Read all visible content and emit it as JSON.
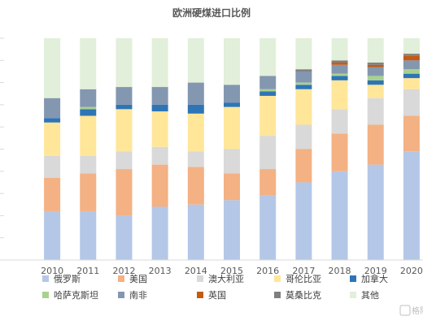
{
  "chart_data": {
    "type": "bar",
    "stacked": true,
    "normalized": true,
    "title": "欧洲硬煤进口比例",
    "xlabel": "",
    "ylabel": "",
    "ylim": [
      0,
      100
    ],
    "categories": [
      "2010",
      "2011",
      "2012",
      "2013",
      "2014",
      "2015",
      "2016",
      "2017",
      "2018",
      "2019",
      "2020"
    ],
    "y_tick_labels_visible": false,
    "grid": false,
    "legend_position": "bottom",
    "series": [
      {
        "name": "俄罗斯",
        "color": "#b4c7e7",
        "values": [
          22,
          22,
          20,
          24,
          25,
          27,
          29,
          35,
          40,
          43,
          49
        ]
      },
      {
        "name": "美国",
        "color": "#f4b183",
        "values": [
          15,
          17,
          21,
          19,
          17,
          12,
          12,
          15,
          17,
          18,
          16
        ]
      },
      {
        "name": "澳大利亚",
        "color": "#d9d9d9",
        "values": [
          10,
          8,
          8,
          8,
          7,
          11,
          15,
          11,
          11,
          12,
          12
        ]
      },
      {
        "name": "哥伦比亚",
        "color": "#ffe699",
        "values": [
          15,
          18,
          19,
          16,
          17,
          19,
          18,
          16,
          13,
          6,
          5
        ]
      },
      {
        "name": "加拿大",
        "color": "#2e75b6",
        "values": [
          2,
          3,
          2,
          3,
          4,
          2,
          2,
          2,
          2,
          2,
          2
        ]
      },
      {
        "name": "哈萨克斯坦",
        "color": "#a9d18e",
        "values": [
          0,
          1,
          0,
          0,
          0,
          0,
          1,
          1,
          1,
          2,
          2
        ]
      },
      {
        "name": "南非",
        "color": "#8497b0",
        "values": [
          9,
          8,
          8,
          8,
          10,
          8,
          6,
          5,
          4,
          4,
          4
        ]
      },
      {
        "name": "英国",
        "color": "#c55a11",
        "values": [
          0,
          0,
          0,
          0,
          0,
          0,
          0,
          0,
          1,
          1,
          2
        ]
      },
      {
        "name": "莫桑比克",
        "color": "#7f7f7f",
        "values": [
          0,
          0,
          0,
          0,
          0,
          0,
          0,
          1,
          1,
          1,
          1
        ]
      },
      {
        "name": "其他",
        "color": "#e2efda",
        "values": [
          27,
          23,
          22,
          22,
          20,
          21,
          17,
          14,
          10,
          11,
          7
        ]
      }
    ]
  },
  "watermark": {
    "text": "格隆汇"
  }
}
